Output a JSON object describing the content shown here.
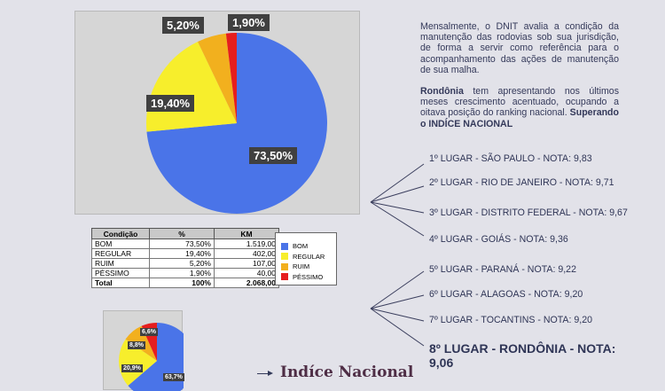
{
  "chart_data": [
    {
      "type": "pie",
      "categories": [
        "BOM",
        "REGULAR",
        "RUIM",
        "PÉSSIMO"
      ],
      "values": [
        73.5,
        19.4,
        5.2,
        1.9
      ],
      "labels": [
        "73,50%",
        "19,40%",
        "5,20%",
        "1,90%"
      ],
      "colors": [
        "#4a74e8",
        "#f7ee2c",
        "#f2b01e",
        "#e61e1e"
      ]
    },
    {
      "type": "pie",
      "categories": [
        "BOM",
        "REGULAR",
        "RUIM",
        "PÉSSIMO"
      ],
      "values": [
        63.7,
        20.9,
        8.8,
        6.6
      ],
      "labels": [
        "63,7%",
        "20,9%",
        "8,8%",
        "6,6%"
      ],
      "colors": [
        "#4a74e8",
        "#f7ee2c",
        "#f2b01e",
        "#e61e1e"
      ]
    }
  ],
  "table": {
    "headers": [
      "Condição",
      "%",
      "KM"
    ],
    "rows": [
      [
        "BOM",
        "73,50%",
        "1.519,00"
      ],
      [
        "REGULAR",
        "19,40%",
        "402,00"
      ],
      [
        "RUIM",
        "5,20%",
        "107,00"
      ],
      [
        "PÉSSIMO",
        "1,90%",
        "40,00"
      ]
    ],
    "total": [
      "Total",
      "100%",
      "2.068,00"
    ]
  },
  "legend": [
    "BOM",
    "REGULAR",
    "RUIM",
    "PÉSSIMO"
  ],
  "description": {
    "p1": "Mensalmente, o DNIT avalia a condição da manutenção das rodovias sob sua jurisdição, de forma a servir como referência para o acompanhamento das ações de manutenção de sua malha.",
    "p2_bold": "Rondônia",
    "p2_text": " tem apresentando nos últimos meses crescimento acentuado, ocupando a oitava posição do ranking nacional. ",
    "p2_end": "Superando o INDÍCE NACIONAL"
  },
  "ranking": [
    "1º LUGAR - SÃO PAULO - NOTA: 9,83",
    "2º LUGAR - RIO DE JANEIRO - NOTA: 9,71",
    "3º LUGAR - DISTRITO FEDERAL - NOTA: 9,67",
    "4º LUGAR - GOIÁS - NOTA: 9,36",
    "5º LUGAR - PARANÁ - NOTA: 9,22",
    "6º LUGAR - ALAGOAS - NOTA: 9,20",
    "7º LUGAR - TOCANTINS - NOTA: 9,20",
    "8º LUGAR - RONDÔNIA - NOTA: 9,06"
  ],
  "indice_label": "Indíce Nacional"
}
